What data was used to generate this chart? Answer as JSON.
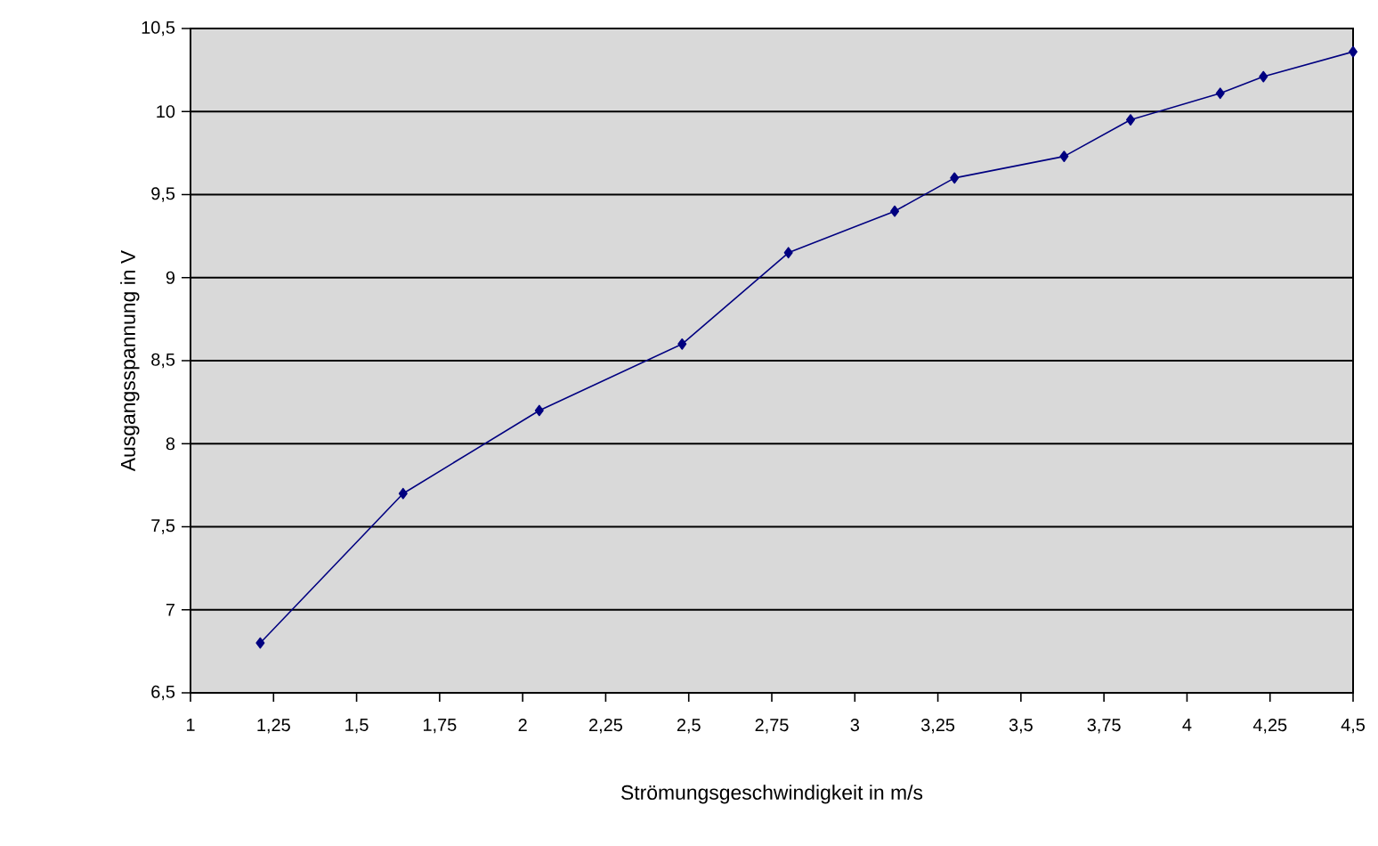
{
  "chart_data": {
    "type": "line",
    "xlabel": "Strömungsgeschwindigkeit in m/s",
    "ylabel": "Ausgangsspannung in V",
    "x": [
      1.21,
      1.64,
      2.05,
      2.48,
      2.8,
      3.12,
      3.3,
      3.63,
      3.83,
      4.1,
      4.23,
      4.5
    ],
    "series": [
      {
        "color": "#000080",
        "values": [
          6.8,
          7.7,
          8.2,
          8.6,
          9.15,
          9.4,
          9.6,
          9.73,
          9.95,
          10.11,
          10.21,
          10.36
        ]
      }
    ],
    "xlim": [
      1,
      4.5
    ],
    "xticks": [
      1,
      {
        "value": 1.25,
        "label": "1,25"
      },
      {
        "value": 1.5,
        "label": "1,5"
      },
      {
        "value": 1.75,
        "label": "1,75"
      },
      2,
      {
        "value": 2.25,
        "label": "2,25"
      },
      {
        "value": 2.5,
        "label": "2,5"
      },
      {
        "value": 2.75,
        "label": "2,75"
      },
      3,
      {
        "value": 3.25,
        "label": "3,25"
      },
      {
        "value": 3.5,
        "label": "3,5"
      },
      {
        "value": 3.75,
        "label": "3,75"
      },
      4,
      {
        "value": 4.25,
        "label": "4,25"
      },
      {
        "value": 4.5,
        "label": "4,5"
      }
    ],
    "ylim": [
      6.5,
      10.5
    ],
    "yticks": [
      {
        "value": 6.5,
        "label": "6,5"
      },
      7,
      {
        "value": 7.5,
        "label": "7,5"
      },
      8,
      {
        "value": 8.5,
        "label": "8,5"
      },
      9,
      {
        "value": 9.5,
        "label": "9,5"
      },
      10,
      {
        "value": 10.5,
        "label": "10,5"
      }
    ],
    "grid": "y",
    "marker": "diamond",
    "line_style": "solid"
  }
}
